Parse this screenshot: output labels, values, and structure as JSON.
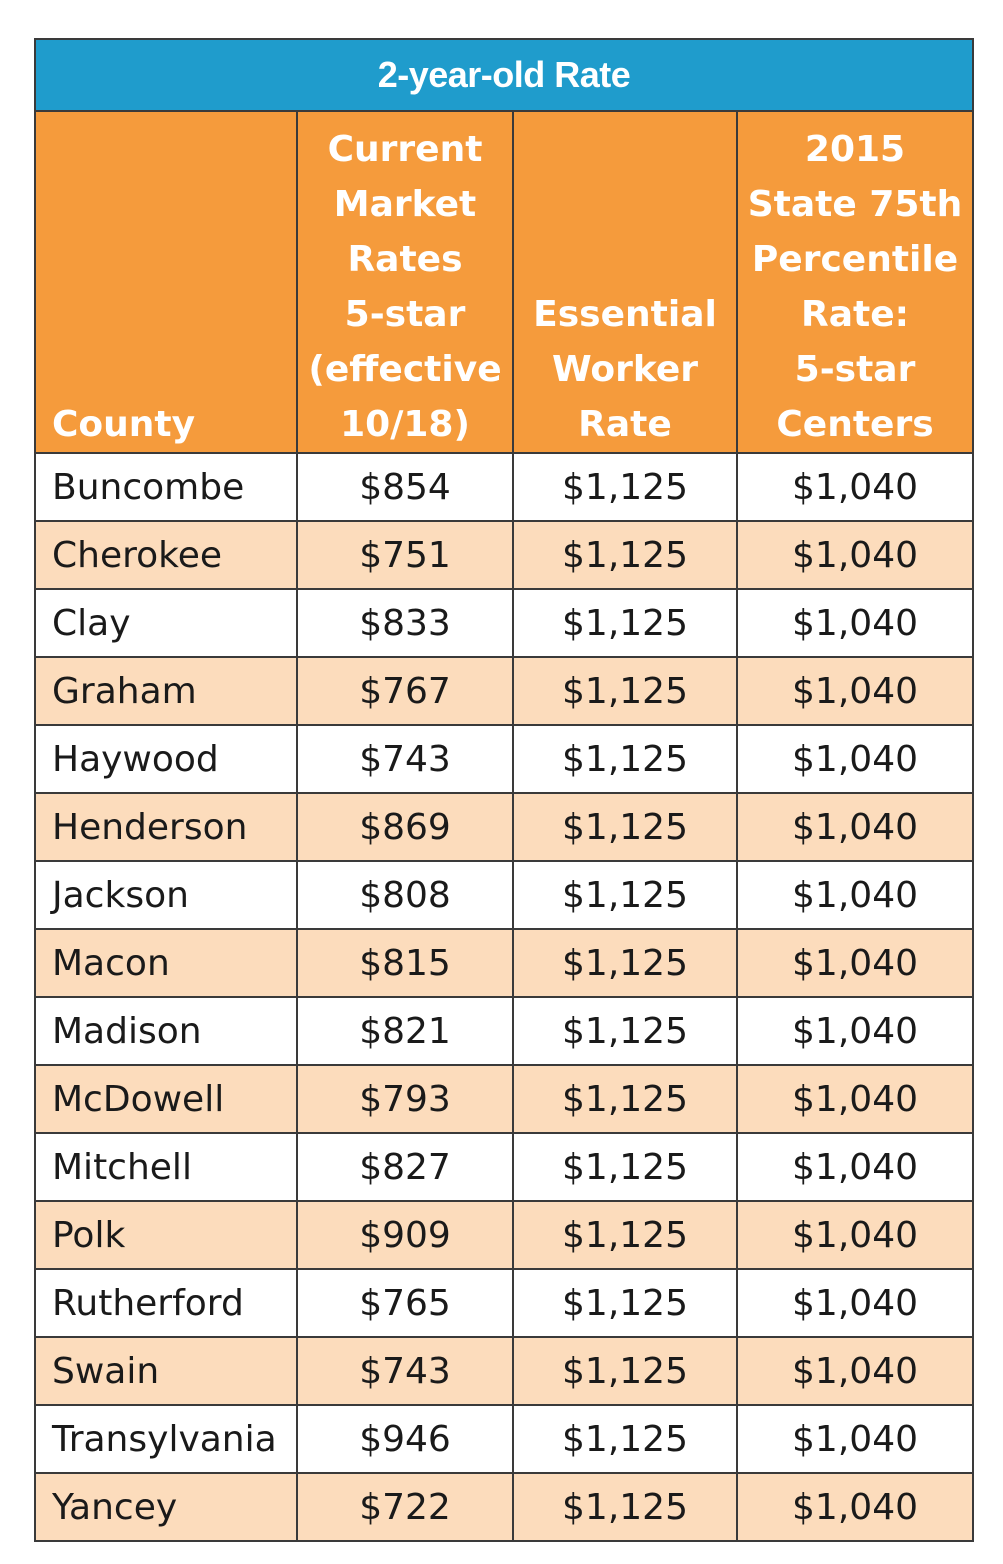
{
  "table": {
    "title": "2-year-old Rate",
    "colors": {
      "title_bg": "#1f9ccc",
      "header_bg": "#f59b3c",
      "stripe_bg": "#fcdcbc",
      "row_bg": "#ffffff"
    },
    "headers": [
      "County",
      "Current\nMarket\nRates\n5-star\n(effective\n10/18)",
      "Essential\nWorker\nRate",
      "2015\nState 75th\nPercentile\nRate:\n5-star\nCenters"
    ],
    "rows": [
      [
        "Buncombe",
        "$854",
        "$1,125",
        "$1,040"
      ],
      [
        "Cherokee",
        "$751",
        "$1,125",
        "$1,040"
      ],
      [
        "Clay",
        "$833",
        "$1,125",
        "$1,040"
      ],
      [
        "Graham",
        "$767",
        "$1,125",
        "$1,040"
      ],
      [
        "Haywood",
        "$743",
        "$1,125",
        "$1,040"
      ],
      [
        "Henderson",
        "$869",
        "$1,125",
        "$1,040"
      ],
      [
        "Jackson",
        "$808",
        "$1,125",
        "$1,040"
      ],
      [
        "Macon",
        "$815",
        "$1,125",
        "$1,040"
      ],
      [
        "Madison",
        "$821",
        "$1,125",
        "$1,040"
      ],
      [
        "McDowell",
        "$793",
        "$1,125",
        "$1,040"
      ],
      [
        "Mitchell",
        "$827",
        "$1,125",
        "$1,040"
      ],
      [
        "Polk",
        "$909",
        "$1,125",
        "$1,040"
      ],
      [
        "Rutherford",
        "$765",
        "$1,125",
        "$1,040"
      ],
      [
        "Swain",
        "$743",
        "$1,125",
        "$1,040"
      ],
      [
        "Transylvania",
        "$946",
        "$1,125",
        "$1,040"
      ],
      [
        "Yancey",
        "$722",
        "$1,125",
        "$1,040"
      ]
    ]
  }
}
